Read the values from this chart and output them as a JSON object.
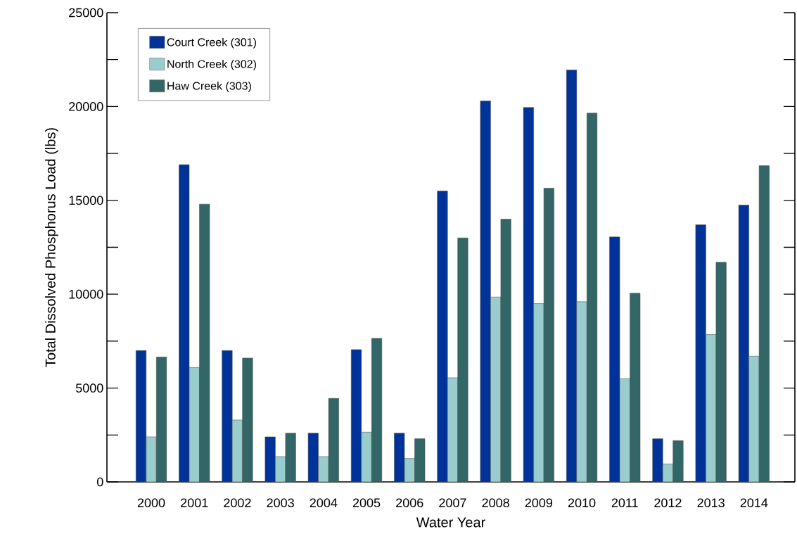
{
  "chart_data": {
    "type": "bar",
    "xlabel": "Water Year",
    "ylabel": "Total Dissolved Phosphorus Load (lbs)",
    "categories": [
      "2000",
      "2001",
      "2002",
      "2003",
      "2004",
      "2005",
      "2006",
      "2007",
      "2008",
      "2009",
      "2010",
      "2011",
      "2012",
      "2013",
      "2014"
    ],
    "series": [
      {
        "name": "Court Creek (301)",
        "color": "#003399",
        "values": [
          7000,
          16900,
          7000,
          2400,
          2600,
          7050,
          2600,
          15500,
          20300,
          19950,
          21950,
          13050,
          2300,
          13700,
          14750
        ]
      },
      {
        "name": "North Creek (302)",
        "color": "#99cccc",
        "values": [
          2400,
          6100,
          3300,
          1350,
          1350,
          2650,
          1250,
          5550,
          9850,
          9500,
          9600,
          5500,
          950,
          7850,
          6700
        ]
      },
      {
        "name": "Haw Creek (303)",
        "color": "#336666",
        "values": [
          6650,
          14800,
          6600,
          2600,
          4450,
          7650,
          2300,
          13000,
          14000,
          15650,
          19650,
          10050,
          2200,
          11700,
          16850
        ]
      }
    ],
    "ylim": [
      0,
      25000
    ],
    "yticks": [
      0,
      5000,
      10000,
      15000,
      20000,
      25000
    ],
    "legend": "top left"
  }
}
